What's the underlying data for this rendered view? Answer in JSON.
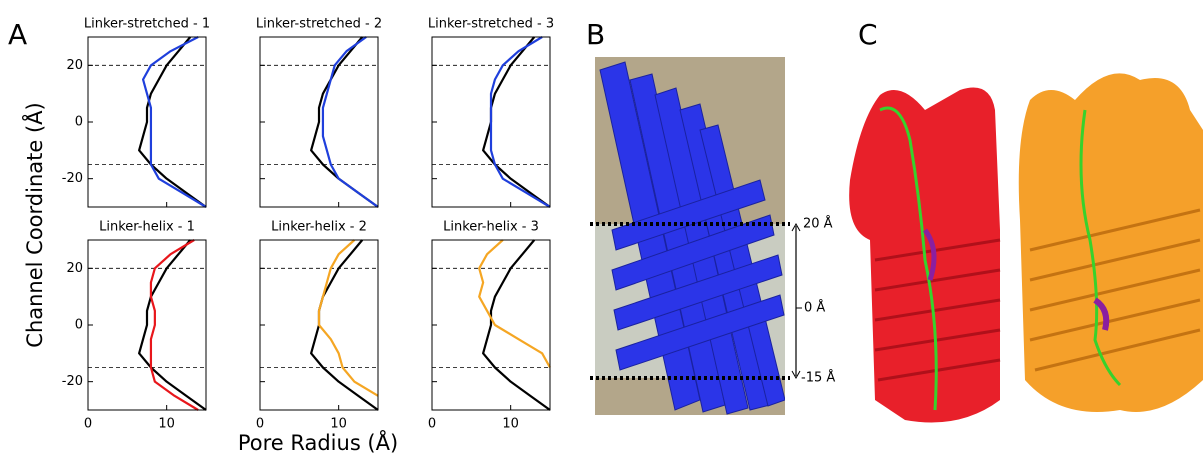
{
  "figure": {
    "panel_labels": [
      "A",
      "B",
      "C"
    ],
    "y_label": "Channel Coordinate (Å)",
    "x_label": "Pore Radius (Å)",
    "membrane_labels": [
      "20 Å",
      "0 Å",
      "-15 Å"
    ]
  },
  "chart_data": [
    {
      "type": "line",
      "title": "Linker-stretched - 1",
      "y": [
        -30,
        -25,
        -20,
        -15,
        -10,
        -5,
        0,
        5,
        10,
        15,
        20,
        25,
        30
      ],
      "series": [
        {
          "color": "#000000",
          "values": [
            15,
            12.5,
            10,
            8,
            6.5,
            7,
            7.5,
            7.5,
            8,
            9,
            10,
            11.5,
            13
          ]
        },
        {
          "color": "#1f3fdc",
          "values": [
            15,
            12,
            9,
            8,
            8,
            8,
            8,
            8,
            7.5,
            7,
            8,
            10.5,
            14
          ]
        }
      ],
      "xlim": [
        0,
        15
      ],
      "xticks": [
        0,
        10
      ],
      "ylim": [
        -30,
        30
      ],
      "yticks": [
        -20,
        0,
        20
      ],
      "hlines": [
        20,
        -15
      ]
    },
    {
      "type": "line",
      "title": "Linker-stretched - 2",
      "y": [
        -30,
        -25,
        -20,
        -15,
        -10,
        -5,
        0,
        5,
        10,
        15,
        20,
        25,
        30
      ],
      "series": [
        {
          "color": "#000000",
          "values": [
            15,
            12.5,
            10,
            8,
            6.5,
            7,
            7.5,
            7.5,
            8,
            9,
            10,
            11.5,
            13
          ]
        },
        {
          "color": "#1f3fdc",
          "values": [
            15,
            12.5,
            10,
            9,
            8.5,
            8,
            8,
            8,
            8.5,
            9,
            9.5,
            11,
            13.5
          ]
        }
      ],
      "xlim": [
        0,
        15
      ],
      "xticks": [
        0,
        10
      ],
      "ylim": [
        -30,
        30
      ],
      "yticks": [
        -20,
        0,
        20
      ],
      "hlines": [
        20,
        -15
      ]
    },
    {
      "type": "line",
      "title": "Linker-stretched - 3",
      "y": [
        -30,
        -25,
        -20,
        -15,
        -10,
        -5,
        0,
        5,
        10,
        15,
        20,
        25,
        30
      ],
      "series": [
        {
          "color": "#000000",
          "values": [
            15,
            12.5,
            10,
            8,
            6.5,
            7,
            7.5,
            7.5,
            8,
            9,
            10,
            11.5,
            13
          ]
        },
        {
          "color": "#1f3fdc",
          "values": [
            15,
            12,
            9,
            8,
            7.5,
            7.5,
            7.5,
            7.5,
            7.5,
            8,
            9,
            11,
            14
          ]
        }
      ],
      "xlim": [
        0,
        15
      ],
      "xticks": [
        0,
        10
      ],
      "ylim": [
        -30,
        30
      ],
      "yticks": [
        -20,
        0,
        20
      ],
      "hlines": [
        20,
        -15
      ]
    },
    {
      "type": "line",
      "title": "Linker-helix - 1",
      "y": [
        -30,
        -25,
        -20,
        -15,
        -10,
        -5,
        0,
        5,
        10,
        15,
        20,
        25,
        30
      ],
      "series": [
        {
          "color": "#000000",
          "values": [
            15,
            12.5,
            10,
            8,
            6.5,
            7,
            7.5,
            7.5,
            8,
            9,
            10,
            11.5,
            13
          ]
        },
        {
          "color": "#e8161b",
          "values": [
            14,
            11,
            8.5,
            8,
            8,
            8,
            8.5,
            8.5,
            8,
            8,
            8.5,
            10.5,
            13.5
          ]
        }
      ],
      "xlim": [
        0,
        15
      ],
      "xticks": [
        0,
        10
      ],
      "ylim": [
        -30,
        30
      ],
      "yticks": [
        -20,
        0,
        20
      ],
      "hlines": [
        20,
        -15
      ]
    },
    {
      "type": "line",
      "title": "Linker-helix - 2",
      "y": [
        -30,
        -25,
        -20,
        -15,
        -10,
        -5,
        0,
        5,
        10,
        15,
        20,
        25,
        30
      ],
      "series": [
        {
          "color": "#000000",
          "values": [
            15,
            12.5,
            10,
            8,
            6.5,
            7,
            7.5,
            7.5,
            8,
            9,
            10,
            11.5,
            13
          ]
        },
        {
          "color": "#f5a623",
          "values": [
            null,
            15,
            12,
            10.5,
            10,
            9,
            7.5,
            7.5,
            8,
            8.5,
            9,
            10,
            12
          ]
        }
      ],
      "xlim": [
        0,
        15
      ],
      "xticks": [
        0,
        10
      ],
      "ylim": [
        -30,
        30
      ],
      "yticks": [
        -20,
        0,
        20
      ],
      "hlines": [
        20,
        -15
      ]
    },
    {
      "type": "line",
      "title": "Linker-helix - 3",
      "y": [
        -30,
        -25,
        -20,
        -15,
        -10,
        -5,
        0,
        5,
        10,
        15,
        20,
        25,
        30
      ],
      "series": [
        {
          "color": "#000000",
          "values": [
            15,
            12.5,
            10,
            8,
            6.5,
            7,
            7.5,
            7.5,
            8,
            9,
            10,
            11.5,
            13
          ]
        },
        {
          "color": "#f5a623",
          "values": [
            null,
            null,
            null,
            15,
            14,
            11,
            8,
            7,
            6,
            6.5,
            6,
            7,
            9
          ]
        }
      ],
      "xlim": [
        0,
        15
      ],
      "xticks": [
        0,
        10
      ],
      "ylim": [
        -30,
        30
      ],
      "yticks": [
        -20,
        0,
        20
      ],
      "hlines": [
        20,
        -15
      ]
    }
  ]
}
